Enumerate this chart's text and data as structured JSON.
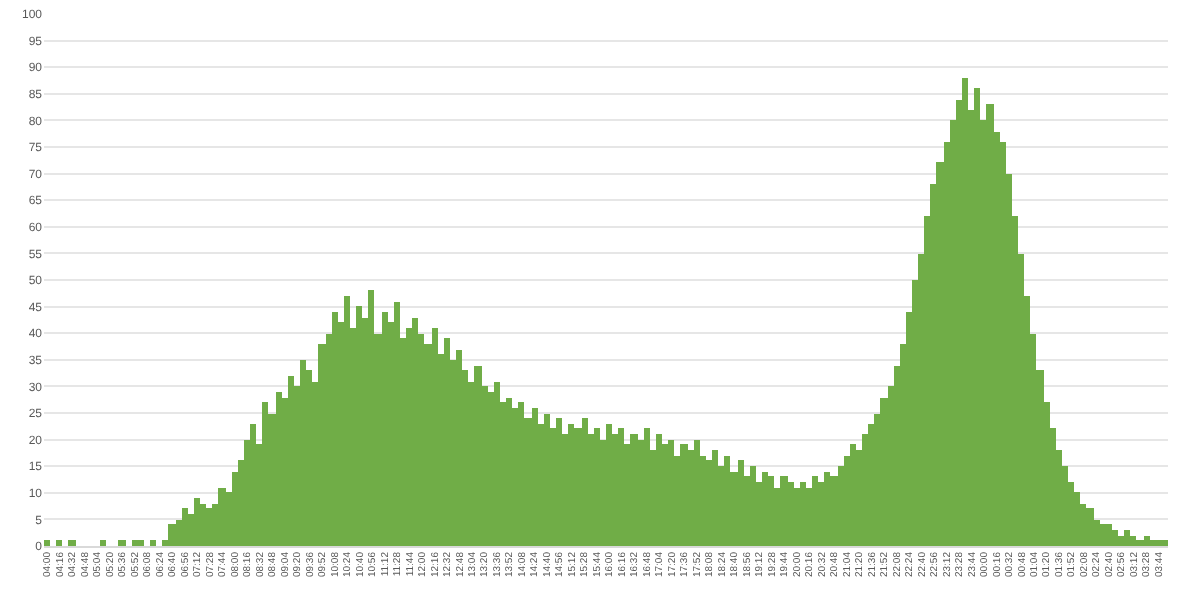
{
  "chart_data": {
    "type": "bar",
    "categories": [
      "04:00",
      null,
      "04:16",
      null,
      "04:32",
      null,
      "04:48",
      null,
      "05:04",
      null,
      "05:20",
      null,
      "05:36",
      null,
      "05:52",
      null,
      "06:08",
      null,
      "06:24",
      null,
      "06:40",
      null,
      "06:56",
      null,
      "07:12",
      null,
      "07:28",
      null,
      "07:44",
      null,
      "08:00",
      null,
      "08:16",
      null,
      "08:32",
      null,
      "08:48",
      null,
      "09:04",
      null,
      "09:20",
      null,
      "09:36",
      null,
      "09:52",
      null,
      "10:08",
      null,
      "10:24",
      null,
      "10:40",
      null,
      "10:56",
      null,
      "11:12",
      null,
      "11:28",
      null,
      "11:44",
      null,
      "12:00",
      null,
      "12:16",
      null,
      "12:32",
      null,
      "12:48",
      null,
      "13:04",
      null,
      "13:20",
      null,
      "13:36",
      null,
      "13:52",
      null,
      "14:08",
      null,
      "14:24",
      null,
      "14:40",
      null,
      "14:56",
      null,
      "15:12",
      null,
      "15:28",
      null,
      "15:44",
      null,
      "16:00",
      null,
      "16:16",
      null,
      "16:32",
      null,
      "16:48",
      null,
      "17:04",
      null,
      "17:20",
      null,
      "17:36",
      null,
      "17:52",
      null,
      "18:08",
      null,
      "18:24",
      null,
      "18:40",
      null,
      "18:56",
      null,
      "19:12",
      null,
      "19:28",
      null,
      "19:44",
      null,
      "20:00",
      null,
      "20:16",
      null,
      "20:32",
      null,
      "20:48",
      null,
      "21:04",
      null,
      "21:20",
      null,
      "21:36",
      null,
      "21:52",
      null,
      "22:08",
      null,
      "22:24",
      null,
      "22:40",
      null,
      "22:56",
      null,
      "23:12",
      null,
      "23:28",
      null,
      "23:44",
      null,
      "00:00",
      null,
      "00:16",
      null,
      "00:32",
      null,
      "00:48",
      null,
      "01:04",
      null,
      "01:20",
      null,
      "01:36",
      null,
      "01:52",
      null,
      "02:08",
      null,
      "02:24",
      null,
      "02:40",
      null,
      "02:56",
      null,
      "03:12",
      null,
      "03:28",
      null,
      "03:44",
      null
    ],
    "values": [
      1,
      0,
      1,
      0,
      1,
      0,
      0,
      0,
      0,
      1,
      0,
      0,
      1,
      0,
      1,
      1,
      0,
      1,
      0,
      1,
      4,
      5,
      7,
      6,
      9,
      8,
      7,
      8,
      11,
      10,
      14,
      16,
      20,
      23,
      19,
      27,
      25,
      29,
      28,
      32,
      30,
      35,
      33,
      31,
      38,
      40,
      44,
      42,
      47,
      41,
      45,
      43,
      48,
      40,
      44,
      42,
      46,
      39,
      41,
      43,
      40,
      38,
      41,
      36,
      39,
      35,
      37,
      33,
      31,
      34,
      30,
      29,
      31,
      27,
      28,
      26,
      27,
      24,
      26,
      23,
      25,
      22,
      24,
      21,
      23,
      22,
      24,
      21,
      22,
      20,
      23,
      21,
      22,
      19,
      21,
      20,
      22,
      18,
      21,
      19,
      20,
      17,
      19,
      18,
      20,
      17,
      16,
      18,
      15,
      17,
      14,
      16,
      13,
      15,
      12,
      14,
      13,
      11,
      13,
      12,
      11,
      12,
      11,
      13,
      12,
      14,
      13,
      15,
      17,
      19,
      18,
      21,
      23,
      25,
      28,
      30,
      34,
      38,
      44,
      50,
      55,
      62,
      68,
      72,
      76,
      80,
      84,
      88,
      82,
      86,
      80,
      83,
      78,
      76,
      70,
      62,
      55,
      47,
      40,
      33,
      27,
      22,
      18,
      15,
      12,
      10,
      8,
      7,
      5,
      4,
      4,
      3,
      2,
      3,
      2,
      1,
      2,
      1,
      1,
      1
    ],
    "color": "#70ad47",
    "ylim": [
      0,
      100
    ],
    "yticks": [
      0,
      5,
      10,
      15,
      20,
      25,
      30,
      35,
      40,
      45,
      50,
      55,
      60,
      65,
      70,
      75,
      80,
      85,
      90,
      95,
      100
    ],
    "grid": "y"
  }
}
